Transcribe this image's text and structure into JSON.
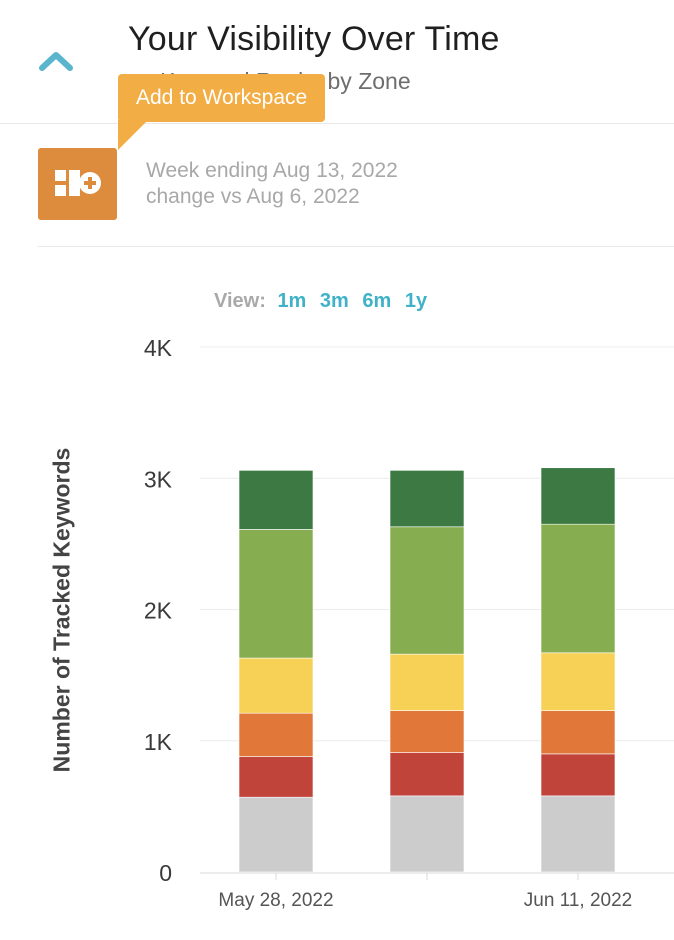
{
  "header": {
    "title": "Your Visibility Over Time",
    "subtitle": "r Keyword Ranks by Zone",
    "collapse_icon": "chevron-up-icon"
  },
  "tooltip": {
    "label": "Add to Workspace"
  },
  "workspace_button": {
    "icon": "add-to-workspace-icon"
  },
  "week_info": {
    "week_ending": "Week ending Aug 13, 2022",
    "change_vs": "change vs Aug 6, 2022"
  },
  "view_selector": {
    "label": "View:",
    "options": [
      "1m",
      "3m",
      "6m",
      "1y"
    ]
  },
  "colors": {
    "accent": "#3fb2c7",
    "tooltip": "#f2ad45",
    "workspace_button": "#dd8c3d"
  },
  "chart_data": {
    "type": "bar",
    "stacked": true,
    "categories": [
      "May 28, 2022",
      "",
      "Jun 11, 2022"
    ],
    "ylabel": "Number of Tracked Keywords",
    "ylim": [
      0,
      4000
    ],
    "yticks": [
      "0",
      "1K",
      "2K",
      "3K",
      "4K"
    ],
    "grid": true,
    "series": [
      {
        "color": "#cccccc",
        "values": [
          570,
          580,
          580
        ]
      },
      {
        "color": "#c1443b",
        "values": [
          310,
          330,
          320
        ]
      },
      {
        "color": "#e2773a",
        "values": [
          330,
          320,
          330
        ]
      },
      {
        "color": "#f7d155",
        "values": [
          420,
          430,
          440
        ]
      },
      {
        "color": "#86ad4f",
        "values": [
          980,
          970,
          980
        ]
      },
      {
        "color": "#3d7a43",
        "values": [
          450,
          430,
          430
        ]
      }
    ]
  }
}
